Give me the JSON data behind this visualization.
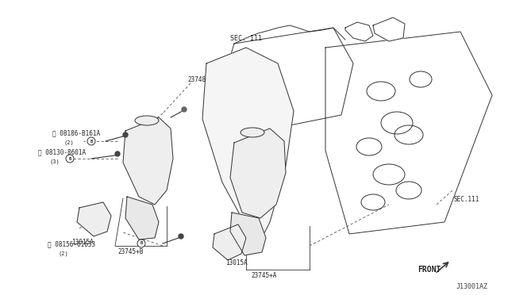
{
  "title": "",
  "bg_color": "#ffffff",
  "fig_width": 6.4,
  "fig_height": 3.72,
  "dpi": 100,
  "diagram_code": "J13001AZ",
  "labels": {
    "sec111_top": "SEC. 111",
    "sec111_right": "SEC.111",
    "23748": "23748",
    "B08186_B161A": "Â08186-B161A\n    (2)",
    "B08130_8601A": "Â08130-8601A\n    (3)",
    "13015A_left": "13015A",
    "23745B": "23745+B",
    "B08156_61633": "Â08156-61633\n    (2)",
    "13015A_bot": "13015A",
    "23745A": "23745+A",
    "front": "FRONT"
  }
}
